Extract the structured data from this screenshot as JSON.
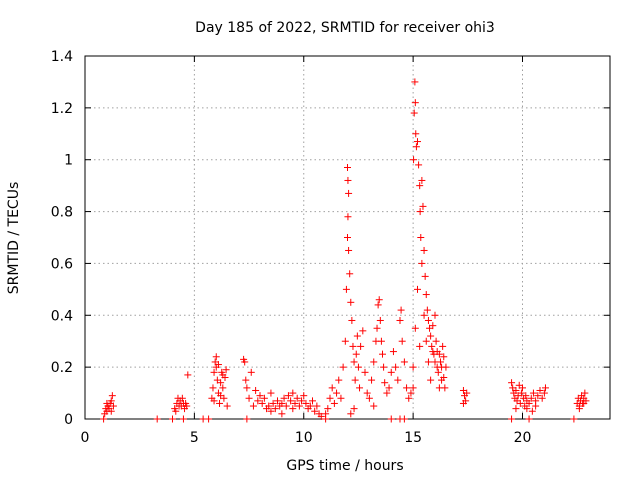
{
  "chart_data": {
    "type": "scatter",
    "title": "Day 185 of 2022, SRMTID for receiver ohi3",
    "xlabel": "GPS time / hours",
    "ylabel": "SRMTID / TECUs",
    "xlim": [
      0,
      24
    ],
    "ylim": [
      0,
      1.4
    ],
    "xticks": [
      0,
      5,
      10,
      15,
      20
    ],
    "yticks": [
      0,
      0.2,
      0.4,
      0.6,
      0.8,
      1,
      1.2,
      1.4
    ],
    "xtick_labels": [
      "0",
      "5",
      "10",
      "15",
      "20"
    ],
    "ytick_labels": [
      "0",
      "0.2",
      "0.4",
      "0.6",
      "0.8",
      "1",
      "1.2",
      "1.4"
    ],
    "grid": true,
    "marker": "+",
    "series": [
      {
        "name": "SRMTID",
        "color": "#ff0000",
        "points": [
          [
            0.85,
            0
          ],
          [
            0.9,
            0.02
          ],
          [
            0.95,
            0.04
          ],
          [
            1.0,
            0.03
          ],
          [
            1.05,
            0.05
          ],
          [
            1.1,
            0.04
          ],
          [
            1.15,
            0.06
          ],
          [
            1.2,
            0.07
          ],
          [
            1.25,
            0.09
          ],
          [
            1.3,
            0.05
          ],
          [
            1.0,
            0.06
          ],
          [
            1.2,
            0.03
          ],
          [
            3.3,
            0
          ],
          [
            4.0,
            0
          ],
          [
            4.1,
            0.04
          ],
          [
            4.2,
            0.06
          ],
          [
            4.25,
            0.08
          ],
          [
            4.3,
            0.05
          ],
          [
            4.35,
            0.07
          ],
          [
            4.4,
            0.05
          ],
          [
            4.5,
            0.06
          ],
          [
            4.55,
            0.04
          ],
          [
            4.6,
            0.06
          ],
          [
            4.65,
            0.05
          ],
          [
            4.7,
            0.17
          ],
          [
            4.15,
            0.03
          ],
          [
            4.45,
            0.08
          ],
          [
            4.5,
            0
          ],
          [
            5.4,
            0
          ],
          [
            5.65,
            0
          ],
          [
            5.8,
            0.08
          ],
          [
            5.85,
            0.12
          ],
          [
            5.9,
            0.18
          ],
          [
            5.95,
            0.22
          ],
          [
            6.0,
            0.2
          ],
          [
            6.05,
            0.15
          ],
          [
            6.1,
            0.1
          ],
          [
            6.15,
            0.06
          ],
          [
            6.2,
            0.14
          ],
          [
            6.25,
            0.18
          ],
          [
            6.3,
            0.12
          ],
          [
            6.35,
            0.08
          ],
          [
            6.4,
            0.16
          ],
          [
            6.45,
            0.19
          ],
          [
            6.5,
            0.05
          ],
          [
            5.9,
            0.07
          ],
          [
            6.0,
            0.24
          ],
          [
            6.1,
            0.21
          ],
          [
            6.2,
            0.09
          ],
          [
            6.3,
            0.17
          ],
          [
            7.25,
            0.23
          ],
          [
            7.3,
            0.22
          ],
          [
            7.35,
            0.15
          ],
          [
            7.4,
            0.12
          ],
          [
            7.5,
            0.08
          ],
          [
            7.6,
            0.18
          ],
          [
            7.7,
            0.05
          ],
          [
            7.8,
            0.11
          ],
          [
            7.9,
            0.07
          ],
          [
            8.0,
            0.09
          ],
          [
            8.1,
            0.06
          ],
          [
            8.2,
            0.08
          ],
          [
            8.3,
            0.04
          ],
          [
            8.4,
            0.05
          ],
          [
            8.5,
            0.03
          ],
          [
            8.6,
            0.06
          ],
          [
            8.7,
            0.04
          ],
          [
            8.8,
            0.07
          ],
          [
            8.9,
            0.05
          ],
          [
            9.0,
            0.06
          ],
          [
            9.1,
            0.08
          ],
          [
            9.2,
            0.05
          ],
          [
            9.3,
            0.09
          ],
          [
            9.4,
            0.07
          ],
          [
            9.5,
            0.04
          ],
          [
            9.6,
            0.06
          ],
          [
            9.7,
            0.08
          ],
          [
            9.8,
            0.05
          ],
          [
            9.9,
            0.07
          ],
          [
            10.0,
            0.09
          ],
          [
            10.1,
            0.06
          ],
          [
            10.2,
            0.04
          ],
          [
            10.3,
            0.05
          ],
          [
            10.4,
            0.07
          ],
          [
            10.5,
            0.03
          ],
          [
            10.6,
            0.05
          ],
          [
            10.7,
            0.02
          ],
          [
            10.8,
            0.01
          ],
          [
            7.4,
            0
          ],
          [
            9.0,
            0.02
          ],
          [
            9.5,
            0.1
          ],
          [
            8.5,
            0.1
          ],
          [
            11.0,
            0.02
          ],
          [
            11.1,
            0.04
          ],
          [
            11.2,
            0.08
          ],
          [
            11.3,
            0.12
          ],
          [
            11.4,
            0.06
          ],
          [
            11.5,
            0.1
          ],
          [
            11.6,
            0.15
          ],
          [
            11.7,
            0.08
          ],
          [
            11.8,
            0.2
          ],
          [
            11.9,
            0.3
          ],
          [
            11.95,
            0.5
          ],
          [
            12.0,
            0.7
          ],
          [
            12.02,
            0.78
          ],
          [
            12.05,
            0.87
          ],
          [
            12.0,
            0.97
          ],
          [
            12.02,
            0.92
          ],
          [
            12.05,
            0.65
          ],
          [
            12.1,
            0.56
          ],
          [
            12.15,
            0.45
          ],
          [
            12.2,
            0.38
          ],
          [
            12.25,
            0.28
          ],
          [
            12.3,
            0.22
          ],
          [
            12.35,
            0.15
          ],
          [
            12.4,
            0.25
          ],
          [
            12.45,
            0.32
          ],
          [
            12.5,
            0.2
          ],
          [
            12.55,
            0.12
          ],
          [
            12.6,
            0.28
          ],
          [
            12.7,
            0.34
          ],
          [
            12.8,
            0.18
          ],
          [
            12.9,
            0.1
          ],
          [
            13.0,
            0.08
          ],
          [
            13.1,
            0.15
          ],
          [
            13.2,
            0.22
          ],
          [
            13.3,
            0.3
          ],
          [
            13.35,
            0.35
          ],
          [
            13.4,
            0.44
          ],
          [
            13.45,
            0.46
          ],
          [
            13.5,
            0.38
          ],
          [
            13.55,
            0.3
          ],
          [
            13.6,
            0.25
          ],
          [
            13.65,
            0.2
          ],
          [
            13.7,
            0.14
          ],
          [
            13.8,
            0.1
          ],
          [
            13.9,
            0.12
          ],
          [
            14.0,
            0.18
          ],
          [
            14.1,
            0.26
          ],
          [
            14.2,
            0.2
          ],
          [
            14.3,
            0.15
          ],
          [
            14.4,
            0.38
          ],
          [
            14.45,
            0.42
          ],
          [
            14.5,
            0.3
          ],
          [
            14.6,
            0.22
          ],
          [
            14.7,
            0.12
          ],
          [
            14.8,
            0.08
          ],
          [
            14.9,
            0.1
          ],
          [
            11.0,
            0
          ],
          [
            12.15,
            0.02
          ],
          [
            12.3,
            0.04
          ],
          [
            13.2,
            0.05
          ],
          [
            14.0,
            0
          ],
          [
            14.4,
            0
          ],
          [
            14.6,
            0
          ],
          [
            15.0,
            0.12
          ],
          [
            15.02,
            1.0
          ],
          [
            15.05,
            1.18
          ],
          [
            15.08,
            1.3
          ],
          [
            15.1,
            1.22
          ],
          [
            15.12,
            1.1
          ],
          [
            15.15,
            1.05
          ],
          [
            15.2,
            1.07
          ],
          [
            15.25,
            0.98
          ],
          [
            15.3,
            0.9
          ],
          [
            15.32,
            0.8
          ],
          [
            15.35,
            0.7
          ],
          [
            15.4,
            0.92
          ],
          [
            15.45,
            0.82
          ],
          [
            15.5,
            0.65
          ],
          [
            15.55,
            0.55
          ],
          [
            15.6,
            0.48
          ],
          [
            15.65,
            0.42
          ],
          [
            15.7,
            0.38
          ],
          [
            15.75,
            0.35
          ],
          [
            15.8,
            0.32
          ],
          [
            15.85,
            0.28
          ],
          [
            15.9,
            0.26
          ],
          [
            15.95,
            0.25
          ],
          [
            16.0,
            0.22
          ],
          [
            16.05,
            0.3
          ],
          [
            16.1,
            0.2
          ],
          [
            16.15,
            0.18
          ],
          [
            16.2,
            0.25
          ],
          [
            16.25,
            0.22
          ],
          [
            16.3,
            0.15
          ],
          [
            16.35,
            0.28
          ],
          [
            16.4,
            0.16
          ],
          [
            16.45,
            0.12
          ],
          [
            16.5,
            0.2
          ],
          [
            15.0,
            0.2
          ],
          [
            15.1,
            0.35
          ],
          [
            15.2,
            0.5
          ],
          [
            15.3,
            0.28
          ],
          [
            15.4,
            0.6
          ],
          [
            15.5,
            0.4
          ],
          [
            15.6,
            0.3
          ],
          [
            15.7,
            0.22
          ],
          [
            15.8,
            0.15
          ],
          [
            15.9,
            0.36
          ],
          [
            16.0,
            0.4
          ],
          [
            16.1,
            0.26
          ],
          [
            16.2,
            0.12
          ],
          [
            16.3,
            0.2
          ],
          [
            16.4,
            0.24
          ],
          [
            17.3,
            0.11
          ],
          [
            17.35,
            0.09
          ],
          [
            17.4,
            0.07
          ],
          [
            17.45,
            0.1
          ],
          [
            17.3,
            0.06
          ],
          [
            19.5,
            0.14
          ],
          [
            19.55,
            0.12
          ],
          [
            19.6,
            0.1
          ],
          [
            19.65,
            0.08
          ],
          [
            19.7,
            0.11
          ],
          [
            19.75,
            0.07
          ],
          [
            19.8,
            0.09
          ],
          [
            19.85,
            0.13
          ],
          [
            19.9,
            0.06
          ],
          [
            19.95,
            0.1
          ],
          [
            20.0,
            0.12
          ],
          [
            20.05,
            0.08
          ],
          [
            20.1,
            0.05
          ],
          [
            20.15,
            0.09
          ],
          [
            20.2,
            0.07
          ],
          [
            20.3,
            0.06
          ],
          [
            20.4,
            0.08
          ],
          [
            20.5,
            0.1
          ],
          [
            20.6,
            0.07
          ],
          [
            20.7,
            0.09
          ],
          [
            20.8,
            0.11
          ],
          [
            20.9,
            0.08
          ],
          [
            21.0,
            0.1
          ],
          [
            21.05,
            0.12
          ],
          [
            20.2,
            0.04
          ],
          [
            20.6,
            0.05
          ],
          [
            19.7,
            0.04
          ],
          [
            19.5,
            0
          ],
          [
            20.3,
            0
          ],
          [
            20.45,
            0.03
          ],
          [
            22.35,
            0
          ],
          [
            22.5,
            0.06
          ],
          [
            22.55,
            0.08
          ],
          [
            22.6,
            0.05
          ],
          [
            22.65,
            0.07
          ],
          [
            22.7,
            0.09
          ],
          [
            22.75,
            0.06
          ],
          [
            22.8,
            0.08
          ],
          [
            22.85,
            0.1
          ],
          [
            22.9,
            0.07
          ],
          [
            22.6,
            0.04
          ],
          [
            22.8,
            0.06
          ]
        ]
      }
    ]
  }
}
